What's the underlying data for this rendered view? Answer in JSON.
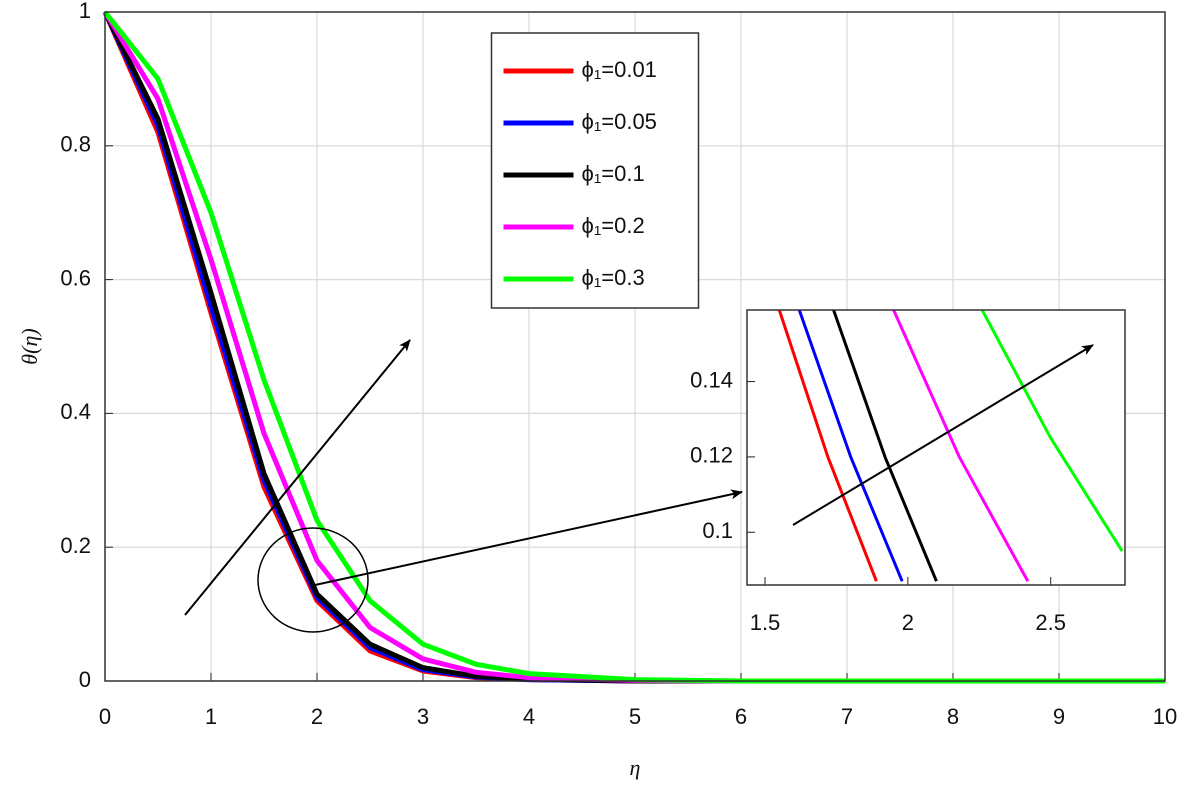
{
  "chart_data": [
    {
      "type": "line",
      "xlabel": "η",
      "ylabel": "θ(η)",
      "x": [
        0,
        0.5,
        1,
        1.5,
        2,
        2.5,
        3,
        3.5,
        4,
        5,
        6,
        7,
        8,
        10
      ],
      "series": [
        {
          "name": "ϕ₁=0.01",
          "color": "#ff0000",
          "values": [
            1,
            0.82,
            0.55,
            0.29,
            0.12,
            0.045,
            0.015,
            0.005,
            0.002,
            0,
            0,
            0,
            0,
            0
          ]
        },
        {
          "name": "ϕ₁=0.05",
          "color": "#0000ff",
          "values": [
            1,
            0.83,
            0.56,
            0.3,
            0.125,
            0.05,
            0.017,
            0.006,
            0.002,
            0,
            0,
            0,
            0,
            0
          ]
        },
        {
          "name": "ϕ₁=0.1",
          "color": "#000000",
          "values": [
            1,
            0.84,
            0.58,
            0.31,
            0.13,
            0.055,
            0.02,
            0.007,
            0.003,
            0,
            0,
            0,
            0,
            0
          ]
        },
        {
          "name": "ϕ₁=0.2",
          "color": "#ff00ff",
          "values": [
            1,
            0.87,
            0.63,
            0.37,
            0.18,
            0.08,
            0.033,
            0.013,
            0.005,
            0.001,
            0,
            0,
            0,
            0
          ]
        },
        {
          "name": "ϕ₁=0.3",
          "color": "#00ff00",
          "values": [
            1,
            0.9,
            0.7,
            0.45,
            0.24,
            0.12,
            0.055,
            0.025,
            0.011,
            0.002,
            0,
            0,
            0,
            0
          ]
        }
      ],
      "xlim": [
        0,
        10
      ],
      "ylim": [
        0,
        1
      ],
      "xticks": [
        0,
        1,
        2,
        3,
        4,
        5,
        6,
        7,
        8,
        9,
        10
      ],
      "yticks": [
        0,
        0.2,
        0.4,
        0.6,
        0.8,
        1
      ],
      "grid": true,
      "legend": "upper center"
    },
    {
      "type": "line",
      "series": [
        {
          "color": "#ff0000",
          "x": [
            1.55,
            1.72,
            1.89
          ],
          "values": [
            0.159,
            0.12,
            0.087
          ]
        },
        {
          "color": "#0000ff",
          "x": [
            1.62,
            1.8,
            1.98
          ],
          "values": [
            0.159,
            0.12,
            0.087
          ]
        },
        {
          "color": "#000000",
          "x": [
            1.74,
            1.92,
            2.1
          ],
          "values": [
            0.159,
            0.12,
            0.087
          ]
        },
        {
          "color": "#ff00ff",
          "x": [
            1.95,
            2.18,
            2.42
          ],
          "values": [
            0.159,
            0.12,
            0.087
          ]
        },
        {
          "color": "#00ff00",
          "x": [
            2.26,
            2.5,
            2.75
          ],
          "values": [
            0.159,
            0.125,
            0.095
          ]
        }
      ],
      "xlim": [
        1.437,
        2.76
      ],
      "ylim": [
        0.086,
        0.159
      ],
      "xticks": [
        1.5,
        2,
        2.5
      ],
      "yticks": [
        0.1,
        0.12,
        0.14
      ],
      "grid": false
    }
  ]
}
